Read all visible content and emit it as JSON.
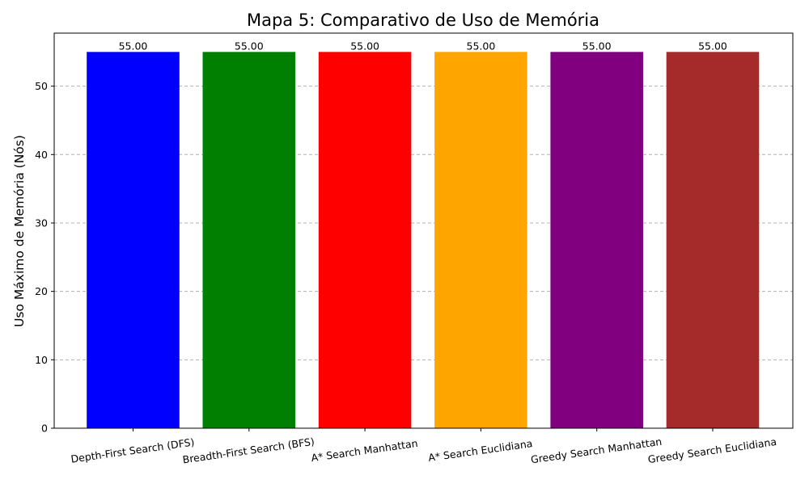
{
  "chart_data": {
    "type": "bar",
    "title": "Mapa 5: Comparativo de Uso de Memória",
    "xlabel": "",
    "ylabel": "Uso Máximo de Memória (Nós)",
    "categories": [
      "Depth-First Search (DFS)",
      "Breadth-First Search (BFS)",
      "A* Search Manhattan",
      "A* Search Euclidiana",
      "Greedy Search Manhattan",
      "Greedy Search Euclidiana"
    ],
    "values": [
      55.0,
      55.0,
      55.0,
      55.0,
      55.0,
      55.0
    ],
    "data_labels": [
      "55.00",
      "55.00",
      "55.00",
      "55.00",
      "55.00",
      "55.00"
    ],
    "colors": [
      "#0000ff",
      "#008000",
      "#ff0000",
      "#ffa500",
      "#800080",
      "#a52a2a"
    ],
    "ylim": [
      0,
      57.75
    ],
    "yticks": [
      0,
      10,
      20,
      30,
      40,
      50
    ],
    "grid": "y-dashed",
    "legend": "none"
  }
}
